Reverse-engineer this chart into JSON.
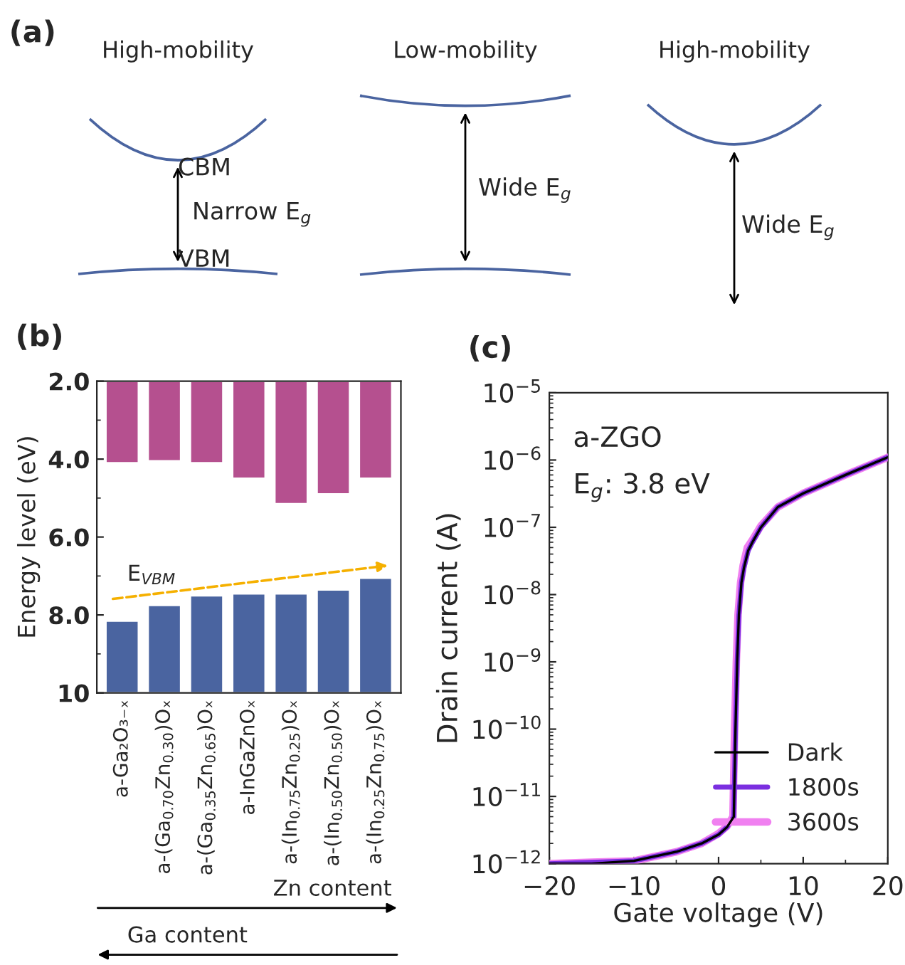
{
  "chart_data": [
    {
      "type": "other",
      "title": "(a)",
      "annotations": [
        "High-mobility",
        "Low-mobility",
        "High-mobility",
        "CBM",
        "Narrow E$_{g}$",
        "VBM",
        "Wide E$_{g}$",
        "Wide E$_{g}$"
      ]
    },
    {
      "type": "bar",
      "title": "(b)",
      "ylabel": "Energy level (eV)",
      "categories": [
        "a-Ga₂O₃₋ₓ",
        "a-(Ga$_{0.70}$Zn$_{0.30}$)Oₓ",
        "a-(Ga$_{0.35}$Zn$_{0.65}$)Oₓ",
        "a-InGaZnOₓ",
        "a-(In$_{0.75}$Zn$_{0.25}$)Oₓ",
        "a-(In$_{0.50}$Zn$_{0.50}$)Oₓ",
        "a-(In$_{0.25}$Zn$_{0.75}$)Oₓ"
      ],
      "series": [
        {
          "color": "#b5508f",
          "base": [
            2,
            2,
            2,
            2,
            2,
            2,
            2
          ],
          "values": [
            2.1,
            2.05,
            2.1,
            2.5,
            3.15,
            2.9,
            2.5
          ]
        },
        {
          "color": "#4a64a0",
          "base": [
            8.15,
            7.75,
            7.5,
            7.45,
            7.45,
            7.35,
            7.05
          ],
          "values": [
            1.85,
            2.25,
            2.5,
            2.55,
            2.55,
            2.65,
            2.95
          ]
        }
      ],
      "ylim": [
        10,
        2
      ],
      "yticks": [
        {
          "value": 2,
          "label": "2.0"
        },
        {
          "value": 4,
          "label": "4.0"
        },
        {
          "value": 6,
          "label": "6.0"
        },
        {
          "value": 8,
          "label": "8.0"
        },
        10
      ],
      "grid": false,
      "annotations": [
        "E$_{VBM}$",
        "Zn content",
        "Ga content"
      ]
    },
    {
      "type": "line",
      "title": "(c)",
      "xlabel": "Gate voltage (V)",
      "ylabel": "Drain current (A)",
      "series": [
        {
          "name": "Dark",
          "color": "#000000",
          "x": [
            -20,
            -15,
            -10,
            -5,
            -2,
            0,
            1,
            1.8,
            2.0,
            2.2,
            2.4,
            2.7,
            3.0,
            3.5,
            4,
            5,
            7,
            10,
            15,
            20
          ],
          "values": [
            1e-12,
            1e-12,
            1.1e-12,
            1.5e-12,
            2e-12,
            2.7e-12,
            3.5e-12,
            5e-12,
            1e-10,
            1e-09,
            5e-09,
            1.5e-08,
            2.5e-08,
            4.5e-08,
            6e-08,
            1e-07,
            2e-07,
            3.2e-07,
            6e-07,
            1.1e-06
          ]
        },
        {
          "name": "1800s",
          "color": "#7b2fe0",
          "x": [
            -20,
            -15,
            -10,
            -5,
            -2,
            0,
            1,
            1.8,
            2.0,
            2.2,
            2.4,
            2.7,
            3.0,
            3.5,
            4,
            5,
            7,
            10,
            15,
            20
          ],
          "values": [
            1e-12,
            1.05e-12,
            1.1e-12,
            1.5e-12,
            2e-12,
            2.7e-12,
            3.5e-12,
            5e-12,
            1e-10,
            1e-09,
            5e-09,
            1.5e-08,
            2.5e-08,
            4.5e-08,
            6e-08,
            1e-07,
            2e-07,
            3.2e-07,
            6e-07,
            1.1e-06
          ]
        },
        {
          "name": "3600s",
          "color": "#f080f0",
          "x": [
            -20,
            -15,
            -10,
            -5,
            -2,
            0,
            1,
            1.7,
            1.9,
            2.1,
            2.3,
            2.6,
            2.9,
            3.4,
            4,
            5,
            7,
            10,
            15,
            20
          ],
          "values": [
            1e-12,
            1.05e-12,
            1.1e-12,
            1.5e-12,
            2e-12,
            2.8e-12,
            3.6e-12,
            5e-12,
            1e-10,
            1e-09,
            5e-09,
            1.5e-08,
            2.7e-08,
            5e-08,
            6.5e-08,
            1.05e-07,
            2e-07,
            3.2e-07,
            6e-07,
            1.1e-06
          ]
        }
      ],
      "log": "y",
      "xlim": [
        -20,
        20
      ],
      "xticks": [
        {
          "value": -20,
          "label": "−20"
        },
        {
          "value": -10,
          "label": "−10"
        },
        0,
        10,
        20
      ],
      "ylim": [
        1e-12,
        1e-05
      ],
      "yticks": [
        {
          "value": 1e-12,
          "label": "10$^{−12}$"
        },
        {
          "value": 1e-11,
          "label": "10$^{−11}$"
        },
        {
          "value": 1e-10,
          "label": "10$^{−10}$"
        },
        {
          "value": 1e-09,
          "label": "10$^{−9}$"
        },
        {
          "value": 1e-08,
          "label": "10$^{−8}$"
        },
        {
          "value": 1e-07,
          "label": "10$^{−7}$"
        },
        {
          "value": 1e-06,
          "label": "10$^{−6}$"
        },
        {
          "value": 1e-05,
          "label": "10$^{−5}$"
        }
      ],
      "grid": false,
      "legend": "bottom right",
      "annotations": [
        "a-ZGO",
        "E$_{g}$: 3.8 eV"
      ]
    }
  ]
}
